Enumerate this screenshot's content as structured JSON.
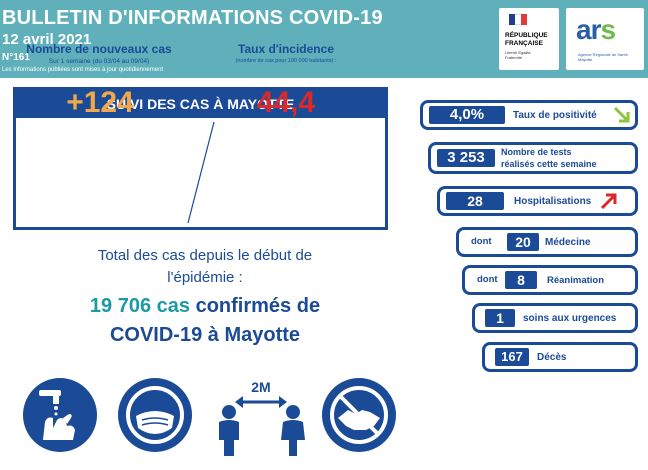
{
  "header": {
    "title": "BULLETIN D'INFORMATIONS COVID-19",
    "date": "12 avril 2021",
    "number": "N°161",
    "note": "Les informations publiées sont mises à jour quotidiennement",
    "logo_rf": {
      "line1": "RÉPUBLIQUE",
      "line2": "FRANÇAISE",
      "motto": "Liberté Égalité Fraternité"
    },
    "logo_ars": {
      "word_main": "ar",
      "word_accent": "s",
      "subtitle": "Agence Régionale de Santé Mayotte"
    }
  },
  "suivi": {
    "banner": "SUIVI DES CAS À MAYOTTE",
    "new_cases": {
      "title": "Nombre de nouveaux cas",
      "subtitle": "Sur 1 semaine (du 03/04 au 09/04)",
      "value": "+124"
    },
    "incidence": {
      "title": "Taux d'incidence",
      "subtitle": "(nombre de cas pour 100 000 habitants) :",
      "value": "44,4"
    }
  },
  "total": {
    "line1": "Total des cas depuis le début de",
    "line2": "l'épidémie :",
    "count": "19 706 cas",
    "line3_rest": " confirmés de",
    "line4": "COVID-19 à Mayotte"
  },
  "stats": [
    {
      "value": "4,0%",
      "label": "Taux de positivité",
      "trend": "down"
    },
    {
      "value": "3 253",
      "label_line1": "Nombre de tests",
      "label_line2": "réalisés cette semaine"
    },
    {
      "value": "28",
      "label": "Hospitalisations",
      "trend": "up"
    },
    {
      "prefix": "dont",
      "value": "20",
      "label": "Médecine"
    },
    {
      "prefix": "dont",
      "value": "8",
      "label": "Réanimation"
    },
    {
      "value": "1",
      "label": "soins aux urgences"
    },
    {
      "value": "167",
      "label": "Décès"
    }
  ],
  "icons": {
    "distance_label": "2M",
    "names": [
      "hand-washing-icon",
      "mask-icon",
      "distancing-icon",
      "no-handshake-icon"
    ]
  },
  "colors": {
    "header_bg": "#5fb0bb",
    "navy": "#1b4a96",
    "orange": "#f0a84a",
    "red": "#d9292b",
    "teal": "#1b9aa6",
    "trend_down": "#8cc63f",
    "trend_up": "#d9292b"
  }
}
